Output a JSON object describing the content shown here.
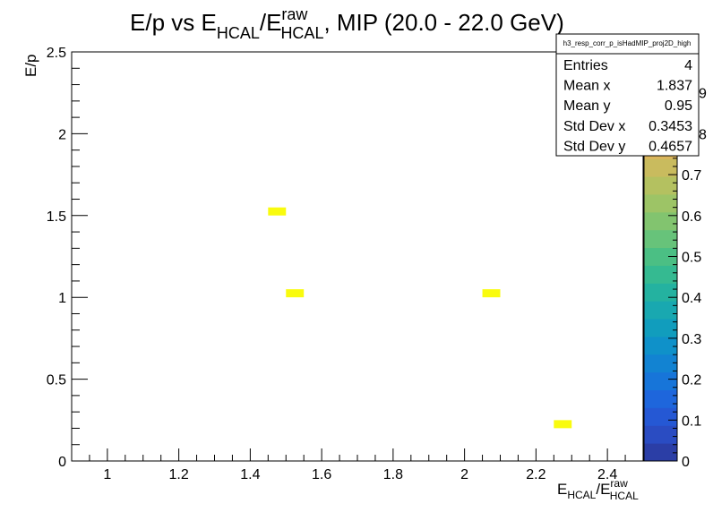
{
  "chart_data": {
    "type": "heatmap",
    "title": {
      "main": "E/p vs E",
      "sub1": "HCAL",
      "mid": "/E",
      "sup2": "raw",
      "sub2": "HCAL",
      "tail": ", MIP (20.0 - 22.0 GeV)"
    },
    "xlabel": {
      "base": "E",
      "sub1": "HCAL",
      "mid": "/E",
      "sup2": "raw",
      "sub2": "HCAL"
    },
    "ylabel": "E/p",
    "xlim": [
      0.9,
      2.5
    ],
    "ylim": [
      0,
      2.5
    ],
    "x_ticks": [
      {
        "value": 1,
        "label": "1"
      },
      {
        "value": 1.2,
        "label": "1.2"
      },
      {
        "value": 1.4,
        "label": "1.4"
      },
      {
        "value": 1.6,
        "label": "1.6"
      },
      {
        "value": 1.8,
        "label": "1.8"
      },
      {
        "value": 2,
        "label": "2"
      },
      {
        "value": 2.2,
        "label": "2.2"
      },
      {
        "value": 2.4,
        "label": "2.4"
      }
    ],
    "y_ticks": [
      {
        "value": 0,
        "label": "0"
      },
      {
        "value": 0.5,
        "label": "0.5"
      },
      {
        "value": 1,
        "label": "1"
      },
      {
        "value": 1.5,
        "label": "1.5"
      },
      {
        "value": 2,
        "label": "2"
      },
      {
        "value": 2.5,
        "label": "2.5"
      }
    ],
    "bin_width": [
      0.05,
      0.05
    ],
    "points": [
      {
        "x": 1.475,
        "y": 1.525,
        "z": 1
      },
      {
        "x": 1.525,
        "y": 1.025,
        "z": 1
      },
      {
        "x": 2.075,
        "y": 1.025,
        "z": 1
      },
      {
        "x": 2.275,
        "y": 0.225,
        "z": 1
      }
    ],
    "colorbar": {
      "zlim": [
        0,
        1
      ],
      "labels": [
        "0",
        "0.1",
        "0.2",
        "0.3",
        "0.4",
        "0.5",
        "0.6",
        "0.7"
      ],
      "label_values": [
        0,
        0.1,
        0.2,
        0.3,
        0.4,
        0.5,
        0.6,
        0.7
      ],
      "partial_labels": [
        {
          "value": 0.8,
          "label": "8"
        },
        {
          "value": 0.9,
          "label": "9"
        }
      ],
      "colors": [
        "#2b3ea6",
        "#2a4cc2",
        "#2558d4",
        "#1e66dc",
        "#1775d9",
        "#1283d2",
        "#0f91c9",
        "#119dbd",
        "#19a8b0",
        "#24b2a0",
        "#35ba91",
        "#4bbf84",
        "#67c37a",
        "#82c46f",
        "#9dc466",
        "#b4c160",
        "#c9bb5e",
        "#dbb55c",
        "#e8b954",
        "#f2c84a",
        "#f7da3c",
        "#f9ec2c",
        "#f9fb0e"
      ]
    },
    "stats": {
      "name": "h3_resp_corr_p_isHadMIP_proj2D_high",
      "rows": [
        {
          "label": "Entries",
          "value": "4"
        },
        {
          "label": "Mean x",
          "value": "1.837"
        },
        {
          "label": "Mean y",
          "value": "0.95"
        },
        {
          "label": "Std Dev x",
          "value": "0.3453"
        },
        {
          "label": "Std Dev y",
          "value": "0.4657"
        }
      ]
    }
  }
}
